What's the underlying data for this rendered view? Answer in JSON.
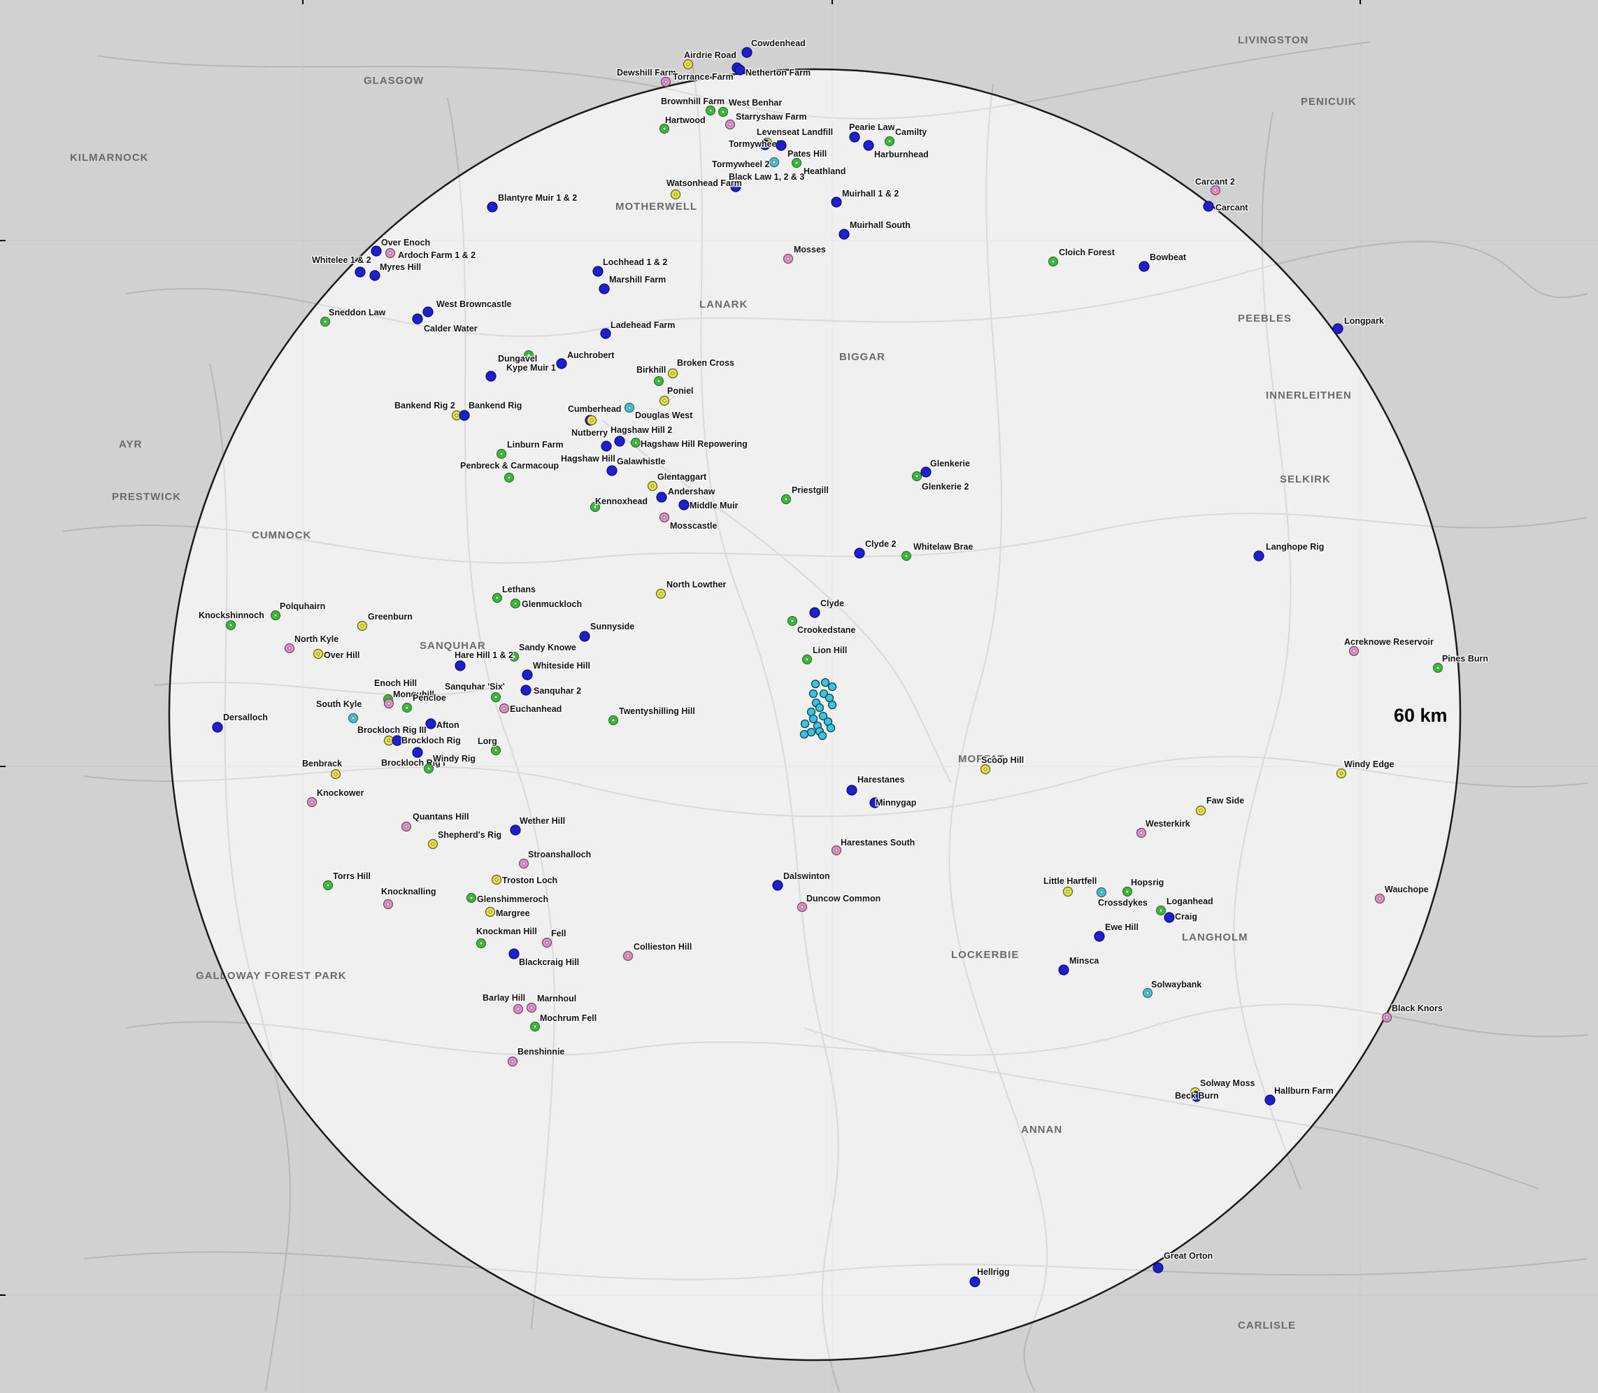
{
  "radius_label": "60 km",
  "colors": {
    "blue": "#1f1fcf",
    "green": "#22cc22",
    "yellow": "#e8e820",
    "pink": "#ee88cc",
    "cyan": "#33c8dd",
    "outside_shade": "#b4b4b4",
    "inside_fill": "#f4f4f4",
    "circle_stroke": "#1a1a1a"
  },
  "towns": [
    "GLASGOW",
    "LIVINGSTON",
    "MOTHERWELL",
    "PENICUIK",
    "LANARK",
    "BIGGAR",
    "PEEBLES",
    "INNERLEITHEN",
    "SELKIRK",
    "MOFFAT",
    "LOCKERBIE",
    "ANNAN",
    "LANGHOLM",
    "CUMNOCK",
    "SANQUHAR",
    "KILMARNOCK",
    "AYR",
    "PRESTWICK",
    "GALLOWAY FOREST PARK",
    "CARLISLE"
  ],
  "sites": [
    {
      "name": "Cowdenhead",
      "color": "blue"
    },
    {
      "name": "Airdrie Road",
      "color": "yellow"
    },
    {
      "name": "Dewshill Farm",
      "color": "pink"
    },
    {
      "name": "Torrance Farm",
      "color": "blue"
    },
    {
      "name": "Netherton Farm",
      "color": "blue"
    },
    {
      "name": "Brownhill Farm",
      "color": "green"
    },
    {
      "name": "West Benhar",
      "color": "green"
    },
    {
      "name": "Starryshaw Farm",
      "color": "pink"
    },
    {
      "name": "Hartwood",
      "color": "green"
    },
    {
      "name": "Levenseat Landfill",
      "color": "yellow"
    },
    {
      "name": "Pearie Law",
      "color": "blue"
    },
    {
      "name": "Camilty",
      "color": "green"
    },
    {
      "name": "Tormywheel",
      "color": "blue"
    },
    {
      "name": "Pates Hill",
      "color": "blue"
    },
    {
      "name": "Harburnhead",
      "color": "blue"
    },
    {
      "name": "Tormywheel 2",
      "color": "cyan"
    },
    {
      "name": "Heathland",
      "color": "green"
    },
    {
      "name": "Black Law 1, 2 & 3",
      "color": "blue"
    },
    {
      "name": "Watsonhead Farm",
      "color": "yellow"
    },
    {
      "name": "Muirhall 1 & 2",
      "color": "blue"
    },
    {
      "name": "Muirhall South",
      "color": "blue"
    },
    {
      "name": "Carcant 2",
      "color": "pink"
    },
    {
      "name": "Carcant",
      "color": "blue"
    },
    {
      "name": "Blantyre Muir 1 & 2",
      "color": "blue"
    },
    {
      "name": "Over Enoch",
      "color": "blue"
    },
    {
      "name": "Ardoch Farm 1 & 2",
      "color": "pink"
    },
    {
      "name": "Whitelee 1 & 2",
      "color": "blue"
    },
    {
      "name": "Myres Hill",
      "color": "blue"
    },
    {
      "name": "Lochhead 1 & 2",
      "color": "blue"
    },
    {
      "name": "Mosses",
      "color": "pink"
    },
    {
      "name": "Cloich Forest",
      "color": "green"
    },
    {
      "name": "Bowbeat",
      "color": "blue"
    },
    {
      "name": "Marshill Farm",
      "color": "blue"
    },
    {
      "name": "Sneddon Law",
      "color": "green"
    },
    {
      "name": "West Browncastle",
      "color": "blue"
    },
    {
      "name": "Calder Water",
      "color": "blue"
    },
    {
      "name": "Ladehead Farm",
      "color": "blue"
    },
    {
      "name": "Longpark",
      "color": "blue"
    },
    {
      "name": "Auchrobert",
      "color": "blue"
    },
    {
      "name": "Kype Muir 1",
      "color": "green"
    },
    {
      "name": "Dungavel",
      "color": "blue"
    },
    {
      "name": "Birkhill",
      "color": "green"
    },
    {
      "name": "Broken Cross",
      "color": "yellow"
    },
    {
      "name": "Poniel",
      "color": "yellow"
    },
    {
      "name": "Bankend Rig 2",
      "color": "yellow"
    },
    {
      "name": "Bankend Rig",
      "color": "blue"
    },
    {
      "name": "Cumberhead",
      "color": "blue"
    },
    {
      "name": "Douglas West",
      "color": "cyan"
    },
    {
      "name": "Nutberry",
      "color": "yellow"
    },
    {
      "name": "Hagshaw Hill 2",
      "color": "blue"
    },
    {
      "name": "Hagshaw Hill Repowering",
      "color": "green"
    },
    {
      "name": "Linburn Farm",
      "color": "green"
    },
    {
      "name": "Hagshaw Hill",
      "color": "blue"
    },
    {
      "name": "Penbreck & Carmacoup",
      "color": "green"
    },
    {
      "name": "Galawhistle",
      "color": "blue"
    },
    {
      "name": "Glentaggart",
      "color": "yellow"
    },
    {
      "name": "Andershaw",
      "color": "blue"
    },
    {
      "name": "Middle Muir",
      "color": "blue"
    },
    {
      "name": "Kennoxhead",
      "color": "green"
    },
    {
      "name": "Mosscastle",
      "color": "pink"
    },
    {
      "name": "Priestgill",
      "color": "green"
    },
    {
      "name": "Glenkerie",
      "color": "blue"
    },
    {
      "name": "Glenkerie 2",
      "color": "green"
    },
    {
      "name": "Clyde 2",
      "color": "blue"
    },
    {
      "name": "Whitelaw Brae",
      "color": "green"
    },
    {
      "name": "Langhope Rig",
      "color": "blue"
    },
    {
      "name": "North Lowther",
      "color": "yellow"
    },
    {
      "name": "Lethans",
      "color": "green"
    },
    {
      "name": "Glenmuckloch",
      "color": "green"
    },
    {
      "name": "Clyde",
      "color": "blue"
    },
    {
      "name": "Crookedstane",
      "color": "green"
    },
    {
      "name": "Knockshinnoch",
      "color": "green"
    },
    {
      "name": "Polquhairn",
      "color": "green"
    },
    {
      "name": "Greenburn",
      "color": "yellow"
    },
    {
      "name": "Sunnyside",
      "color": "blue"
    },
    {
      "name": "North Kyle",
      "color": "pink"
    },
    {
      "name": "Over Hill",
      "color": "yellow"
    },
    {
      "name": "Sandy Knowe",
      "color": "green"
    },
    {
      "name": "Hare Hill 1 & 2",
      "color": "blue"
    },
    {
      "name": "Whiteside Hill",
      "color": "blue"
    },
    {
      "name": "Lion Hill",
      "color": "green"
    },
    {
      "name": "Acreknowe Reservoir",
      "color": "pink"
    },
    {
      "name": "Pines Burn",
      "color": "green"
    },
    {
      "name": "Enoch Hill",
      "color": "green"
    },
    {
      "name": "Sanquhar 'Six'",
      "color": "green"
    },
    {
      "name": "Sanquhar 2",
      "color": "blue"
    },
    {
      "name": "Monquhill",
      "color": "pink"
    },
    {
      "name": "South Kyle",
      "color": "cyan"
    },
    {
      "name": "Pencloe",
      "color": "green"
    },
    {
      "name": "Euchanhead",
      "color": "pink"
    },
    {
      "name": "Dersalloch",
      "color": "blue"
    },
    {
      "name": "Afton",
      "color": "blue"
    },
    {
      "name": "Brockloch Rig III",
      "color": "yellow"
    },
    {
      "name": "Brockloch Rig",
      "color": "blue"
    },
    {
      "name": "Twentyshilling Hill",
      "color": "green"
    },
    {
      "name": "Lorg",
      "color": "green"
    },
    {
      "name": "Brockloch Rig I",
      "color": "blue"
    },
    {
      "name": "Windy Rig",
      "color": "green"
    },
    {
      "name": "Benbrack",
      "color": "yellow"
    },
    {
      "name": "Scoop Hill",
      "color": "yellow"
    },
    {
      "name": "Windy Edge",
      "color": "yellow"
    },
    {
      "name": "Harestanes",
      "color": "blue"
    },
    {
      "name": "Knockower",
      "color": "pink"
    },
    {
      "name": "Minnygap",
      "color": "blue"
    },
    {
      "name": "Faw Side",
      "color": "yellow"
    },
    {
      "name": "Quantans Hill",
      "color": "pink"
    },
    {
      "name": "Wether Hill",
      "color": "blue"
    },
    {
      "name": "Westerkirk",
      "color": "pink"
    },
    {
      "name": "Shepherd's Rig",
      "color": "yellow"
    },
    {
      "name": "Harestanes South",
      "color": "pink"
    },
    {
      "name": "Stroanshalloch",
      "color": "pink"
    },
    {
      "name": "Torrs Hill",
      "color": "green"
    },
    {
      "name": "Troston Loch",
      "color": "yellow"
    },
    {
      "name": "Dalswinton",
      "color": "blue"
    },
    {
      "name": "Little Hartfell",
      "color": "yellow"
    },
    {
      "name": "Hopsrig",
      "color": "green"
    },
    {
      "name": "Crossdykes",
      "color": "cyan"
    },
    {
      "name": "Wauchope",
      "color": "pink"
    },
    {
      "name": "Knocknalling",
      "color": "pink"
    },
    {
      "name": "Glenshimmeroch",
      "color": "green"
    },
    {
      "name": "Duncow Common",
      "color": "pink"
    },
    {
      "name": "Loganhead",
      "color": "green"
    },
    {
      "name": "Margree",
      "color": "yellow"
    },
    {
      "name": "Craig",
      "color": "blue"
    },
    {
      "name": "Ewe Hill",
      "color": "blue"
    },
    {
      "name": "Knockman Hill",
      "color": "green"
    },
    {
      "name": "Fell",
      "color": "pink"
    },
    {
      "name": "Collieston Hill",
      "color": "pink"
    },
    {
      "name": "Blackcraig Hill",
      "color": "blue"
    },
    {
      "name": "Minsca",
      "color": "blue"
    },
    {
      "name": "Solwaybank",
      "color": "cyan"
    },
    {
      "name": "Barlay Hill",
      "color": "pink"
    },
    {
      "name": "Marnhoul",
      "color": "pink"
    },
    {
      "name": "Black Knors",
      "color": "pink"
    },
    {
      "name": "Mochrum Fell",
      "color": "green"
    },
    {
      "name": "Benshinnie",
      "color": "pink"
    },
    {
      "name": "Solway Moss",
      "color": "yellow"
    },
    {
      "name": "Beck Burn",
      "color": "blue"
    },
    {
      "name": "Hallburn Farm",
      "color": "blue"
    },
    {
      "name": "Great Orton",
      "color": "blue"
    },
    {
      "name": "Hellrigg",
      "color": "blue"
    }
  ],
  "proposed_cluster": {
    "color": "cyan",
    "count": 20
  }
}
